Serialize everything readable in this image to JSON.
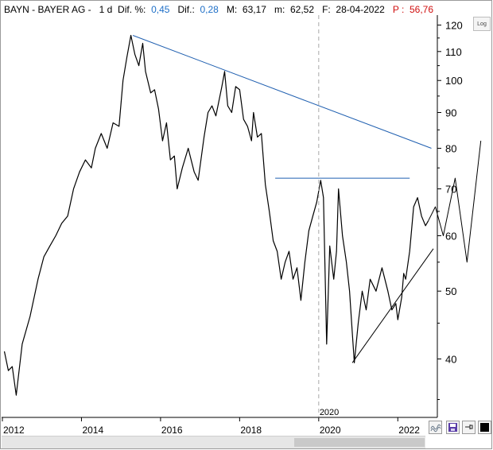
{
  "header": {
    "ticker": "BAYN",
    "name": "BAYER AG",
    "timeframe": "1 d",
    "dif_pct_label": "Dif. %:",
    "dif_pct_value": "0,45",
    "dif_label": "Dif.:",
    "dif_value": "0,28",
    "max_label": "M:",
    "max_value": "63,17",
    "min_label": "m:",
    "min_value": "62,52",
    "date_label": "F:",
    "date_value": "28-04-2022",
    "price_label": "P :",
    "price_value": "56,76",
    "positive_color": "#1e6fc7",
    "negative_color": "#d01010"
  },
  "toolbar": {
    "log_label": "Log",
    "zoom_icon": "wave-icon",
    "save_icon": "floppy-icon",
    "pin_icon": "pin-icon",
    "color_icon": "black-square-icon"
  },
  "chart_data": {
    "type": "line",
    "yscale": "log",
    "ylim": [
      33,
      124
    ],
    "xlim": [
      2012.0,
      2022.9
    ],
    "yticks": [
      40,
      50,
      60,
      70,
      80,
      90,
      100,
      110,
      120
    ],
    "xticks": [
      2012,
      2014,
      2016,
      2018,
      2020,
      2022
    ],
    "marker": {
      "x": 2020.0,
      "label": "2020"
    },
    "grid": false,
    "series": [
      {
        "color": "#000000",
        "points": [
          [
            2012.05,
            41
          ],
          [
            2012.15,
            38.5
          ],
          [
            2012.25,
            39
          ],
          [
            2012.35,
            35.5
          ],
          [
            2012.5,
            42
          ],
          [
            2012.7,
            46
          ],
          [
            2012.9,
            52
          ],
          [
            2013.05,
            56
          ],
          [
            2013.2,
            58
          ],
          [
            2013.35,
            60
          ],
          [
            2013.5,
            62.5
          ],
          [
            2013.65,
            64
          ],
          [
            2013.8,
            70
          ],
          [
            2013.95,
            74
          ],
          [
            2014.1,
            77
          ],
          [
            2014.25,
            75
          ],
          [
            2014.35,
            80
          ],
          [
            2014.5,
            84
          ],
          [
            2014.65,
            80
          ],
          [
            2014.8,
            87
          ],
          [
            2014.95,
            86
          ],
          [
            2015.05,
            100
          ],
          [
            2015.15,
            108
          ],
          [
            2015.25,
            116
          ],
          [
            2015.35,
            109
          ],
          [
            2015.45,
            105
          ],
          [
            2015.55,
            113
          ],
          [
            2015.62,
            103
          ],
          [
            2015.75,
            96
          ],
          [
            2015.85,
            97
          ],
          [
            2015.95,
            91
          ],
          [
            2016.05,
            82
          ],
          [
            2016.15,
            87
          ],
          [
            2016.25,
            77
          ],
          [
            2016.35,
            78
          ],
          [
            2016.42,
            70
          ],
          [
            2016.55,
            75
          ],
          [
            2016.7,
            80
          ],
          [
            2016.85,
            74
          ],
          [
            2016.95,
            72
          ],
          [
            2017.1,
            83
          ],
          [
            2017.2,
            90
          ],
          [
            2017.3,
            92
          ],
          [
            2017.4,
            89
          ],
          [
            2017.55,
            98
          ],
          [
            2017.62,
            103
          ],
          [
            2017.7,
            92
          ],
          [
            2017.8,
            90
          ],
          [
            2017.9,
            98
          ],
          [
            2018.0,
            97
          ],
          [
            2018.1,
            88
          ],
          [
            2018.2,
            86
          ],
          [
            2018.3,
            82
          ],
          [
            2018.35,
            90
          ],
          [
            2018.45,
            83
          ],
          [
            2018.55,
            84
          ],
          [
            2018.65,
            71
          ],
          [
            2018.75,
            65
          ],
          [
            2018.85,
            59
          ],
          [
            2018.95,
            57
          ],
          [
            2019.05,
            52
          ],
          [
            2019.15,
            55
          ],
          [
            2019.25,
            57
          ],
          [
            2019.35,
            52
          ],
          [
            2019.45,
            54
          ],
          [
            2019.55,
            48.5
          ],
          [
            2019.65,
            55
          ],
          [
            2019.75,
            61
          ],
          [
            2019.85,
            64
          ],
          [
            2019.95,
            67
          ],
          [
            2020.05,
            72
          ],
          [
            2020.12,
            68
          ],
          [
            2020.2,
            42
          ],
          [
            2020.28,
            58
          ],
          [
            2020.38,
            52
          ],
          [
            2020.45,
            57
          ],
          [
            2020.5,
            70
          ],
          [
            2020.6,
            60
          ],
          [
            2020.7,
            55
          ],
          [
            2020.78,
            50
          ],
          [
            2020.85,
            43.5
          ],
          [
            2020.9,
            39.5
          ],
          [
            2021.0,
            45
          ],
          [
            2021.1,
            50
          ],
          [
            2021.2,
            47
          ],
          [
            2021.3,
            52
          ],
          [
            2021.45,
            50
          ],
          [
            2021.6,
            54
          ],
          [
            2021.75,
            50
          ],
          [
            2021.85,
            47
          ],
          [
            2021.95,
            48
          ],
          [
            2022.0,
            45.5
          ],
          [
            2022.1,
            49
          ],
          [
            2022.15,
            53
          ],
          [
            2022.2,
            52
          ],
          [
            2022.3,
            57
          ],
          [
            2022.4,
            66
          ],
          [
            2022.5,
            68
          ],
          [
            2022.6,
            64
          ],
          [
            2022.7,
            62
          ],
          [
            2022.77,
            63
          ]
        ]
      },
      {
        "color": "#1f5fb0",
        "points": [
          [
            2015.3,
            116
          ],
          [
            2022.85,
            80
          ]
        ]
      },
      {
        "color": "#1f5fb0",
        "points": [
          [
            2018.9,
            72.5
          ],
          [
            2022.3,
            72.5
          ]
        ]
      },
      {
        "color": "#000000",
        "points": [
          [
            2020.85,
            39.5
          ],
          [
            2022.9,
            57.5
          ]
        ]
      },
      {
        "color": "#000000",
        "points": [
          [
            2022.77,
            63
          ],
          [
            2022.95,
            66
          ],
          [
            2023.15,
            60
          ],
          [
            2023.45,
            72.5
          ],
          [
            2023.75,
            55
          ],
          [
            2024.1,
            82
          ]
        ]
      }
    ]
  }
}
